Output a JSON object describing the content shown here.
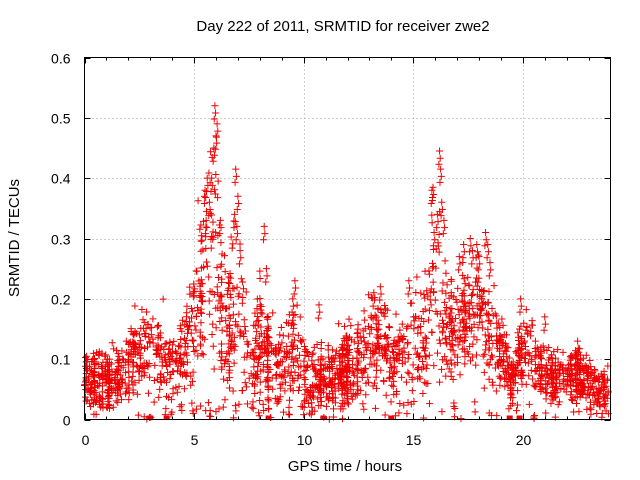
{
  "chart_data": {
    "type": "scatter",
    "title": "Day 222 of 2011, SRMTID for receiver zwe2",
    "xlabel": "GPS time / hours",
    "ylabel": "SRMTID / TECUs",
    "xlim": [
      0,
      24
    ],
    "ylim": [
      0,
      0.6
    ],
    "x_ticks": [
      "0",
      "5",
      "10",
      "15",
      "20"
    ],
    "y_ticks": [
      "0",
      "0.1",
      "0.2",
      "0.3",
      "0.4",
      "0.5",
      "0.6"
    ],
    "grid": true,
    "marker": "plus",
    "color": "#ee0000",
    "series": [
      {
        "name": "zwe2",
        "envelope": [
          [
            0.0,
            0.07,
            0.03
          ],
          [
            0.5,
            0.07,
            0.035
          ],
          [
            1.0,
            0.06,
            0.035
          ],
          [
            1.5,
            0.07,
            0.035
          ],
          [
            2.0,
            0.09,
            0.04
          ],
          [
            2.5,
            0.12,
            0.05
          ],
          [
            3.0,
            0.13,
            0.06
          ],
          [
            3.5,
            0.1,
            0.05
          ],
          [
            4.0,
            0.09,
            0.05
          ],
          [
            4.5,
            0.12,
            0.06
          ],
          [
            5.0,
            0.15,
            0.08
          ],
          [
            5.5,
            0.28,
            0.1
          ],
          [
            6.0,
            0.26,
            0.12
          ],
          [
            6.5,
            0.14,
            0.08
          ],
          [
            7.0,
            0.2,
            0.09
          ],
          [
            7.5,
            0.1,
            0.06
          ],
          [
            8.0,
            0.13,
            0.07
          ],
          [
            8.5,
            0.09,
            0.05
          ],
          [
            9.0,
            0.09,
            0.05
          ],
          [
            9.5,
            0.12,
            0.06
          ],
          [
            10.0,
            0.08,
            0.05
          ],
          [
            10.5,
            0.07,
            0.04
          ],
          [
            11.0,
            0.08,
            0.04
          ],
          [
            11.5,
            0.07,
            0.04
          ],
          [
            12.0,
            0.09,
            0.05
          ],
          [
            12.5,
            0.1,
            0.05
          ],
          [
            13.0,
            0.12,
            0.06
          ],
          [
            13.5,
            0.12,
            0.06
          ],
          [
            14.0,
            0.1,
            0.05
          ],
          [
            14.5,
            0.1,
            0.05
          ],
          [
            15.0,
            0.14,
            0.07
          ],
          [
            15.5,
            0.13,
            0.07
          ],
          [
            16.0,
            0.22,
            0.1
          ],
          [
            16.5,
            0.17,
            0.08
          ],
          [
            17.0,
            0.16,
            0.07
          ],
          [
            17.5,
            0.17,
            0.06
          ],
          [
            18.0,
            0.18,
            0.06
          ],
          [
            18.5,
            0.15,
            0.07
          ],
          [
            19.0,
            0.11,
            0.05
          ],
          [
            19.5,
            0.06,
            0.03
          ],
          [
            20.0,
            0.12,
            0.05
          ],
          [
            20.5,
            0.1,
            0.04
          ],
          [
            21.0,
            0.08,
            0.035
          ],
          [
            21.5,
            0.07,
            0.03
          ],
          [
            22.0,
            0.07,
            0.03
          ],
          [
            22.5,
            0.08,
            0.035
          ],
          [
            23.0,
            0.06,
            0.03
          ],
          [
            23.5,
            0.05,
            0.025
          ],
          [
            24.0,
            0.05,
            0.025
          ]
        ],
        "peaks": [
          [
            5.95,
            0.52
          ],
          [
            6.05,
            0.49
          ],
          [
            6.0,
            0.47
          ],
          [
            5.9,
            0.45
          ],
          [
            5.8,
            0.4
          ],
          [
            5.6,
            0.4
          ],
          [
            5.5,
            0.38
          ],
          [
            5.7,
            0.36
          ],
          [
            5.55,
            0.33
          ],
          [
            6.2,
            0.33
          ],
          [
            6.9,
            0.415
          ],
          [
            7.0,
            0.37
          ],
          [
            6.85,
            0.34
          ],
          [
            6.95,
            0.32
          ],
          [
            7.1,
            0.28
          ],
          [
            8.2,
            0.32
          ],
          [
            8.3,
            0.25
          ],
          [
            9.6,
            0.23
          ],
          [
            9.5,
            0.2
          ],
          [
            10.7,
            0.19
          ],
          [
            13.2,
            0.21
          ],
          [
            13.5,
            0.22
          ],
          [
            14.8,
            0.23
          ],
          [
            15.85,
            0.38
          ],
          [
            15.9,
            0.385
          ],
          [
            16.2,
            0.445
          ],
          [
            16.25,
            0.415
          ],
          [
            16.3,
            0.36
          ],
          [
            16.1,
            0.34
          ],
          [
            15.95,
            0.31
          ],
          [
            16.4,
            0.33
          ],
          [
            17.1,
            0.27
          ],
          [
            17.3,
            0.29
          ],
          [
            17.6,
            0.3
          ],
          [
            17.7,
            0.28
          ],
          [
            17.9,
            0.29
          ],
          [
            18.0,
            0.27
          ],
          [
            18.3,
            0.31
          ],
          [
            18.4,
            0.29
          ],
          [
            18.5,
            0.26
          ],
          [
            19.9,
            0.2
          ],
          [
            21.0,
            0.17
          ],
          [
            22.5,
            0.13
          ]
        ],
        "zero_markers_x": [
          3.0,
          3.75,
          8.4,
          10.9,
          14.0,
          19.4,
          19.85
        ]
      }
    ]
  }
}
